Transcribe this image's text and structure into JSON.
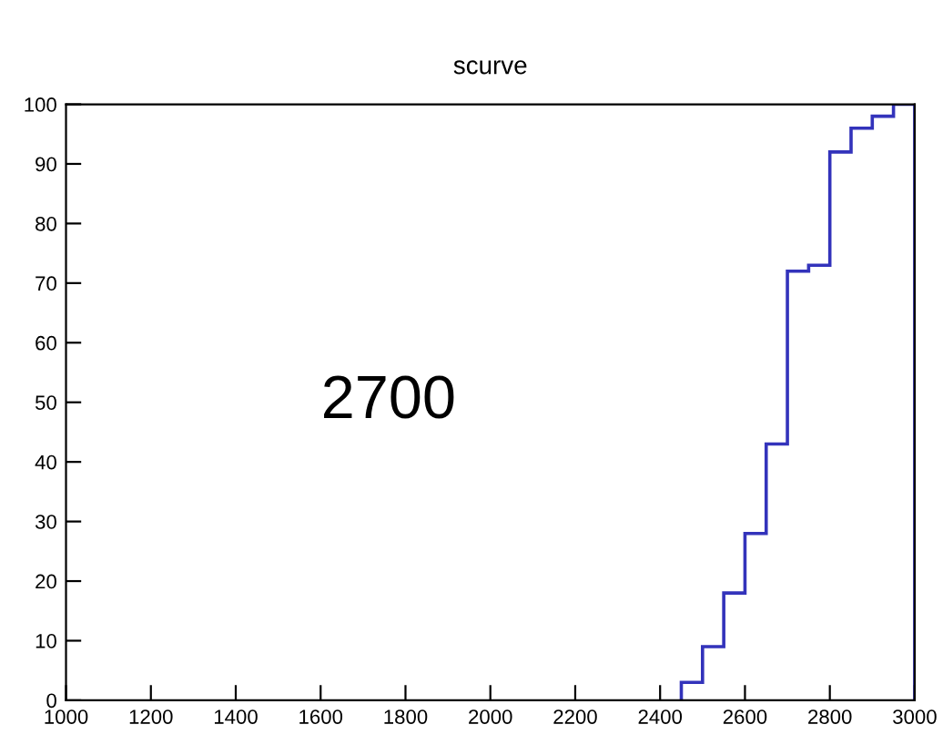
{
  "chart_data": {
    "type": "histogram",
    "title": "scurve",
    "bins": [
      2450,
      2500,
      2550,
      2600,
      2650,
      2700,
      2750,
      2800,
      2850,
      2900,
      2950,
      3000
    ],
    "values": [
      3,
      9,
      18,
      28,
      43,
      72,
      73,
      92,
      96,
      98,
      100
    ],
    "color": "#3333bb",
    "xlim": [
      1000,
      3000
    ],
    "xticks": [
      1000,
      1200,
      1400,
      1600,
      1800,
      2000,
      2200,
      2400,
      2600,
      2800,
      3000
    ],
    "ylim": [
      0,
      100
    ],
    "yticks": [
      0,
      10,
      20,
      30,
      40,
      50,
      60,
      70,
      80,
      90,
      100
    ],
    "grid": false,
    "annotations": [
      "2700"
    ]
  }
}
